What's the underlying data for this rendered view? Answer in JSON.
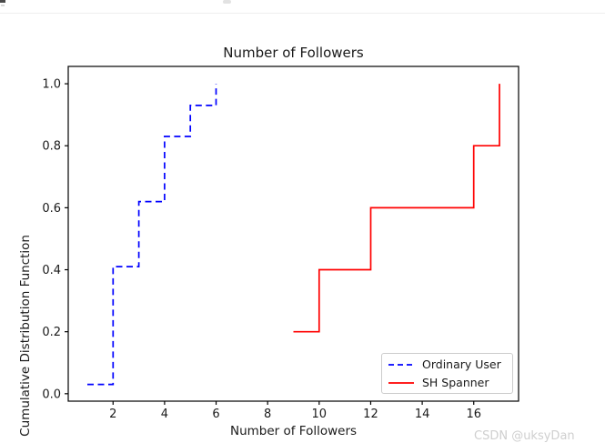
{
  "page": {
    "background": "#ffffff"
  },
  "watermark": {
    "text": "CSDN @uksyDan",
    "color": "#cfcfcf"
  },
  "chart_data": {
    "type": "line",
    "subtype": "empirical-cdf-step",
    "title": "Number of Followers",
    "xlabel": "Number of Followers",
    "ylabel": "Cumulative Distribution Function",
    "xlim": [
      0.26,
      17.74
    ],
    "ylim": [
      -0.024,
      1.056
    ],
    "grid": false,
    "legend_position": "lower right",
    "axes_color": "#000000",
    "text_color": "#1a1a1a",
    "xticks": [
      2,
      4,
      6,
      8,
      10,
      12,
      14,
      16
    ],
    "xtick_labels": [
      "2",
      "4",
      "6",
      "8",
      "10",
      "12",
      "14",
      "16"
    ],
    "yticks": [
      0.0,
      0.2,
      0.4,
      0.6,
      0.8,
      1.0
    ],
    "ytick_labels": [
      "0.0",
      "0.2",
      "0.4",
      "0.6",
      "0.8",
      "1.0"
    ],
    "series": [
      {
        "name": "Ordinary User",
        "color": "#0000ff",
        "line_style": "dashed",
        "draw_style": "steps-post",
        "x": [
          1,
          2,
          3,
          4,
          5,
          6
        ],
        "y": [
          0.03,
          0.41,
          0.62,
          0.83,
          0.93,
          1.0
        ]
      },
      {
        "name": "SH Spanner",
        "color": "#ff0000",
        "line_style": "solid",
        "draw_style": "steps-post",
        "x": [
          9,
          10,
          12,
          16,
          17
        ],
        "y": [
          0.2,
          0.4,
          0.6,
          0.8,
          1.0
        ]
      }
    ]
  }
}
